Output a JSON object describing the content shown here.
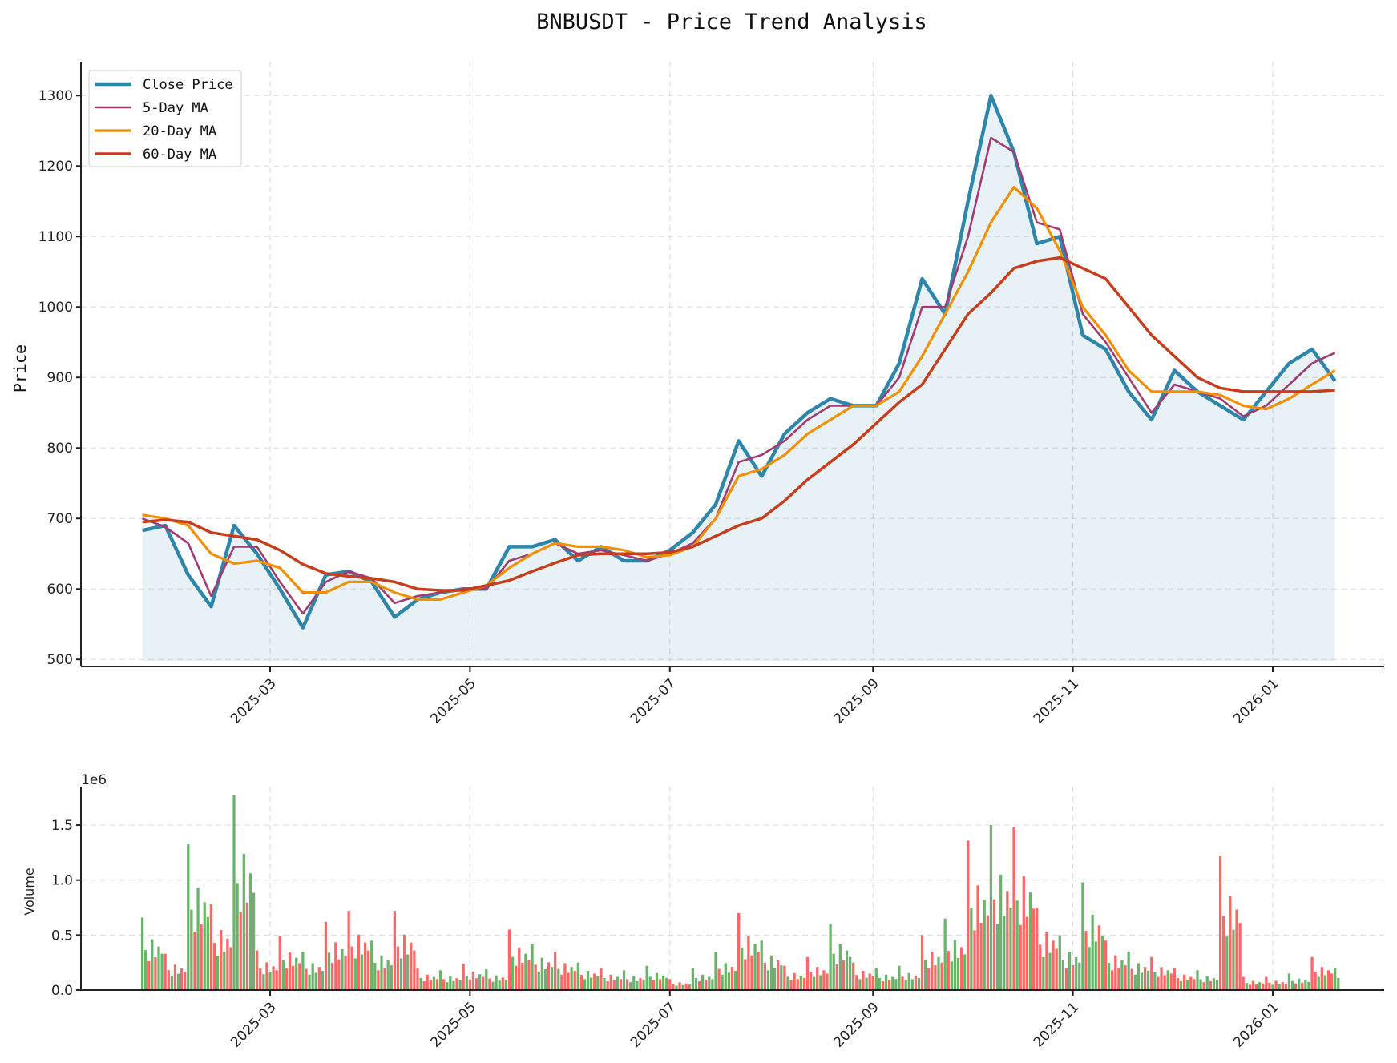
{
  "chart_data": [
    {
      "type": "line",
      "title": "BNBUSDT - Price Trend Analysis",
      "xlabel": "",
      "ylabel": "Price",
      "ylim": [
        490,
        1348
      ],
      "yticks": [
        500,
        600,
        700,
        800,
        900,
        1000,
        1100,
        1200,
        1300
      ],
      "xtick_labels": [
        "2025-03",
        "2025-05",
        "2025-07",
        "2025-09",
        "2025-11",
        "2026-01"
      ],
      "grid": true,
      "legend_position": "upper left",
      "legend": [
        "Close Price",
        "5-Day MA",
        "20-Day MA",
        "60-Day MA"
      ],
      "x": [
        "2025-01-21",
        "2025-01-28",
        "2025-02-04",
        "2025-02-11",
        "2025-02-18",
        "2025-02-25",
        "2025-03-04",
        "2025-03-11",
        "2025-03-18",
        "2025-03-25",
        "2025-04-01",
        "2025-04-08",
        "2025-04-15",
        "2025-04-22",
        "2025-04-29",
        "2025-05-06",
        "2025-05-13",
        "2025-05-20",
        "2025-05-27",
        "2025-06-03",
        "2025-06-10",
        "2025-06-17",
        "2025-06-24",
        "2025-07-01",
        "2025-07-08",
        "2025-07-15",
        "2025-07-22",
        "2025-07-29",
        "2025-08-05",
        "2025-08-12",
        "2025-08-19",
        "2025-08-26",
        "2025-09-02",
        "2025-09-09",
        "2025-09-16",
        "2025-09-23",
        "2025-09-30",
        "2025-10-07",
        "2025-10-14",
        "2025-10-21",
        "2025-10-28",
        "2025-11-04",
        "2025-11-11",
        "2025-11-18",
        "2025-11-25",
        "2025-12-02",
        "2025-12-09",
        "2025-12-16",
        "2025-12-23",
        "2025-12-30",
        "2026-01-06",
        "2026-01-13",
        "2026-01-20"
      ],
      "series": [
        {
          "name": "Close Price",
          "color": "#2e86ab",
          "values": [
            683,
            690,
            620,
            575,
            690,
            650,
            600,
            545,
            620,
            625,
            610,
            560,
            585,
            595,
            600,
            600,
            660,
            660,
            670,
            640,
            660,
            640,
            640,
            655,
            680,
            720,
            810,
            760,
            820,
            850,
            870,
            860,
            860,
            920,
            1040,
            990,
            1150,
            1300,
            1220,
            1090,
            1100,
            960,
            940,
            880,
            840,
            910,
            880,
            860,
            840,
            880,
            920,
            940,
            895
          ]
        },
        {
          "name": "5-Day MA",
          "color": "#a23b72",
          "values": [
            700,
            688,
            665,
            590,
            660,
            660,
            610,
            565,
            610,
            625,
            615,
            580,
            590,
            595,
            600,
            600,
            640,
            650,
            665,
            650,
            655,
            648,
            640,
            650,
            665,
            700,
            780,
            790,
            810,
            840,
            860,
            860,
            860,
            900,
            1000,
            1000,
            1100,
            1240,
            1220,
            1120,
            1110,
            990,
            950,
            900,
            850,
            890,
            880,
            870,
            845,
            860,
            890,
            920,
            935
          ]
        },
        {
          "name": "20-Day MA",
          "color": "#f18f01",
          "values": [
            705,
            700,
            690,
            650,
            636,
            640,
            630,
            595,
            595,
            610,
            610,
            595,
            585,
            585,
            595,
            605,
            630,
            650,
            665,
            660,
            660,
            655,
            645,
            648,
            660,
            700,
            760,
            770,
            790,
            820,
            840,
            860,
            860,
            880,
            930,
            990,
            1050,
            1120,
            1170,
            1140,
            1080,
            1000,
            960,
            910,
            880,
            880,
            880,
            875,
            860,
            855,
            870,
            890,
            910
          ]
        },
        {
          "name": "60-Day MA",
          "color": "#c73e1d",
          "values": [
            695,
            698,
            695,
            680,
            675,
            670,
            655,
            635,
            622,
            618,
            615,
            610,
            600,
            598,
            598,
            605,
            612,
            625,
            637,
            648,
            650,
            650,
            650,
            652,
            660,
            675,
            690,
            700,
            725,
            755,
            780,
            805,
            835,
            865,
            890,
            940,
            990,
            1020,
            1055,
            1065,
            1070,
            1055,
            1040,
            1000,
            960,
            930,
            900,
            885,
            880,
            880,
            880,
            880,
            882
          ]
        }
      ]
    },
    {
      "type": "bar",
      "title": "",
      "xlabel": "",
      "ylabel": "Volume",
      "offset_text": "1e6",
      "ylim": [
        0,
        1.85
      ],
      "yticks": [
        0.0,
        0.5,
        1.0,
        1.5
      ],
      "ytick_labels": [
        "0.0",
        "0.5",
        "1.0",
        "1.5"
      ],
      "xtick_labels": [
        "2025-03",
        "2025-05",
        "2025-07",
        "2025-09",
        "2025-11",
        "2026-01"
      ],
      "grid": true,
      "colors": {
        "up": "#6ab46a",
        "down": "#ff6666"
      },
      "x": [
        "2025-01-21",
        "2025-01-28",
        "2025-02-04",
        "2025-02-11",
        "2025-02-18",
        "2025-02-25",
        "2025-03-04",
        "2025-03-11",
        "2025-03-18",
        "2025-03-25",
        "2025-04-01",
        "2025-04-08",
        "2025-04-15",
        "2025-04-22",
        "2025-04-29",
        "2025-05-06",
        "2025-05-13",
        "2025-05-20",
        "2025-05-27",
        "2025-06-03",
        "2025-06-10",
        "2025-06-17",
        "2025-06-24",
        "2025-07-01",
        "2025-07-08",
        "2025-07-15",
        "2025-07-22",
        "2025-07-29",
        "2025-08-05",
        "2025-08-12",
        "2025-08-19",
        "2025-08-26",
        "2025-09-02",
        "2025-09-09",
        "2025-09-16",
        "2025-09-23",
        "2025-09-30",
        "2025-10-07",
        "2025-10-14",
        "2025-10-21",
        "2025-10-28",
        "2025-11-04",
        "2025-11-11",
        "2025-11-18",
        "2025-11-25",
        "2025-12-02",
        "2025-12-09",
        "2025-12-16",
        "2025-12-23",
        "2025-12-30",
        "2026-01-06",
        "2026-01-13",
        "2026-01-20"
      ],
      "values": [
        0.66,
        0.33,
        1.33,
        0.78,
        1.77,
        0.36,
        0.49,
        0.35,
        0.62,
        0.72,
        0.45,
        0.72,
        0.2,
        0.18,
        0.24,
        0.19,
        0.55,
        0.42,
        0.35,
        0.25,
        0.2,
        0.18,
        0.22,
        0.1,
        0.2,
        0.35,
        0.7,
        0.45,
        0.22,
        0.3,
        0.6,
        0.25,
        0.2,
        0.22,
        0.5,
        0.65,
        1.36,
        1.5,
        1.48,
        0.75,
        0.5,
        0.98,
        0.45,
        0.35,
        0.3,
        0.2,
        0.18,
        1.22,
        0.12,
        0.12,
        0.15,
        0.3,
        0.2
      ],
      "direction": [
        "up",
        "down",
        "up",
        "down",
        "up",
        "down",
        "down",
        "up",
        "down",
        "down",
        "up",
        "down",
        "down",
        "up",
        "down",
        "up",
        "down",
        "up",
        "down",
        "up",
        "down",
        "up",
        "up",
        "down",
        "up",
        "up",
        "down",
        "up",
        "down",
        "down",
        "up",
        "down",
        "up",
        "up",
        "down",
        "up",
        "down",
        "up",
        "down",
        "down",
        "up",
        "up",
        "down",
        "up",
        "down",
        "down",
        "up",
        "down",
        "down",
        "down",
        "up",
        "down",
        "up"
      ]
    }
  ],
  "page": {
    "title": "BNBUSDT - Price Trend Analysis",
    "price_ylabel": "Price",
    "volume_ylabel": "Volume",
    "volume_offset": "1e6"
  }
}
